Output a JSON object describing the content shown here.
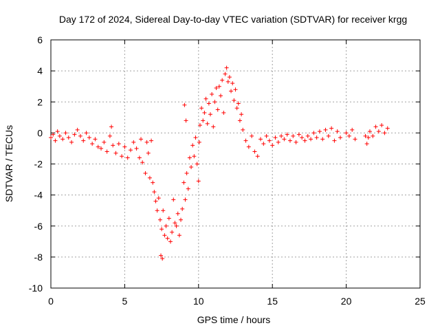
{
  "chart_data": {
    "type": "scatter",
    "title": "Day 172 of 2024, Sidereal Day-to-day VTEC variation (SDTVAR) for receiver krgg",
    "xlabel": "GPS time / hours",
    "ylabel": "SDTVAR / TECUs",
    "xlim": [
      0,
      25
    ],
    "ylim": [
      -10,
      6
    ],
    "xticks": [
      0,
      5,
      10,
      15,
      20,
      25
    ],
    "yticks": [
      -10,
      -8,
      -6,
      -4,
      -2,
      0,
      2,
      4,
      6
    ],
    "xtick_labels": [
      "0",
      "5",
      "10",
      "15",
      "20",
      "25"
    ],
    "ytick_labels": [
      "-10",
      "-8",
      "-6",
      "-4",
      "-2",
      "0",
      "2",
      "4",
      "6"
    ],
    "grid": true,
    "marker": "+",
    "color": "#ff0000",
    "series": [
      {
        "name": "SDTVAR",
        "points": [
          [
            0.0,
            -0.3
          ],
          [
            0.15,
            -0.1
          ],
          [
            0.3,
            -0.5
          ],
          [
            0.45,
            0.1
          ],
          [
            0.6,
            -0.2
          ],
          [
            0.8,
            -0.4
          ],
          [
            1.0,
            0.0
          ],
          [
            1.2,
            -0.3
          ],
          [
            1.4,
            -0.6
          ],
          [
            1.6,
            -0.1
          ],
          [
            1.8,
            0.2
          ],
          [
            2.0,
            -0.2
          ],
          [
            2.2,
            -0.5
          ],
          [
            2.4,
            0.0
          ],
          [
            2.6,
            -0.3
          ],
          [
            2.8,
            -0.7
          ],
          [
            3.0,
            -0.4
          ],
          [
            3.2,
            -0.9
          ],
          [
            3.4,
            -1.0
          ],
          [
            3.6,
            -0.6
          ],
          [
            3.8,
            -1.2
          ],
          [
            4.0,
            -0.2
          ],
          [
            4.1,
            0.4
          ],
          [
            4.2,
            -0.8
          ],
          [
            4.4,
            -1.3
          ],
          [
            4.6,
            -0.7
          ],
          [
            4.8,
            -1.5
          ],
          [
            5.0,
            -0.9
          ],
          [
            5.2,
            -1.6
          ],
          [
            5.4,
            -1.1
          ],
          [
            5.6,
            -0.6
          ],
          [
            5.8,
            -1.0
          ],
          [
            6.0,
            -1.6
          ],
          [
            6.1,
            -0.4
          ],
          [
            6.2,
            -1.9
          ],
          [
            6.4,
            -2.6
          ],
          [
            6.5,
            -0.6
          ],
          [
            6.6,
            -1.3
          ],
          [
            6.7,
            -2.9
          ],
          [
            6.8,
            -0.5
          ],
          [
            6.9,
            -3.2
          ],
          [
            7.0,
            -3.8
          ],
          [
            7.1,
            -4.4
          ],
          [
            7.2,
            -5.0
          ],
          [
            7.3,
            -4.2
          ],
          [
            7.4,
            -5.6
          ],
          [
            7.45,
            -7.9
          ],
          [
            7.5,
            -6.2
          ],
          [
            7.55,
            -8.1
          ],
          [
            7.6,
            -5.0
          ],
          [
            7.7,
            -6.6
          ],
          [
            7.8,
            -6.0
          ],
          [
            7.9,
            -6.8
          ],
          [
            8.0,
            -5.5
          ],
          [
            8.1,
            -7.0
          ],
          [
            8.2,
            -6.4
          ],
          [
            8.3,
            -4.3
          ],
          [
            8.4,
            -5.8
          ],
          [
            8.5,
            -6.0
          ],
          [
            8.6,
            -5.2
          ],
          [
            8.7,
            -6.6
          ],
          [
            8.8,
            -5.6
          ],
          [
            8.9,
            -4.9
          ],
          [
            9.0,
            -3.2
          ],
          [
            9.05,
            1.8
          ],
          [
            9.1,
            -4.3
          ],
          [
            9.15,
            0.8
          ],
          [
            9.2,
            -2.6
          ],
          [
            9.3,
            -3.6
          ],
          [
            9.4,
            -1.6
          ],
          [
            9.5,
            -2.2
          ],
          [
            9.6,
            -0.8
          ],
          [
            9.7,
            -1.5
          ],
          [
            9.8,
            -0.3
          ],
          [
            9.9,
            -2.0
          ],
          [
            10.0,
            -3.1
          ],
          [
            10.05,
            -0.6
          ],
          [
            10.1,
            0.5
          ],
          [
            10.2,
            1.6
          ],
          [
            10.3,
            0.8
          ],
          [
            10.4,
            1.3
          ],
          [
            10.5,
            2.2
          ],
          [
            10.6,
            0.6
          ],
          [
            10.7,
            1.9
          ],
          [
            10.8,
            1.2
          ],
          [
            10.9,
            2.5
          ],
          [
            11.0,
            0.4
          ],
          [
            11.1,
            2.0
          ],
          [
            11.2,
            2.9
          ],
          [
            11.3,
            1.5
          ],
          [
            11.4,
            3.0
          ],
          [
            11.5,
            2.4
          ],
          [
            11.6,
            3.4
          ],
          [
            11.7,
            1.3
          ],
          [
            11.8,
            3.8
          ],
          [
            11.9,
            4.2
          ],
          [
            12.0,
            3.3
          ],
          [
            12.1,
            3.6
          ],
          [
            12.2,
            2.7
          ],
          [
            12.3,
            3.2
          ],
          [
            12.4,
            2.1
          ],
          [
            12.5,
            2.8
          ],
          [
            12.6,
            1.6
          ],
          [
            12.7,
            1.9
          ],
          [
            12.8,
            0.8
          ],
          [
            12.9,
            1.2
          ],
          [
            13.0,
            0.2
          ],
          [
            13.2,
            -0.5
          ],
          [
            13.4,
            -0.9
          ],
          [
            13.6,
            -0.2
          ],
          [
            13.8,
            -1.2
          ],
          [
            14.0,
            -1.5
          ],
          [
            14.2,
            -0.4
          ],
          [
            14.4,
            -0.7
          ],
          [
            14.6,
            -0.2
          ],
          [
            14.8,
            -0.5
          ],
          [
            15.0,
            -0.8
          ],
          [
            15.2,
            -0.3
          ],
          [
            15.4,
            -0.6
          ],
          [
            15.6,
            -0.2
          ],
          [
            15.8,
            -0.4
          ],
          [
            16.0,
            -0.1
          ],
          [
            16.2,
            -0.5
          ],
          [
            16.4,
            -0.2
          ],
          [
            16.6,
            -0.6
          ],
          [
            16.8,
            -0.1
          ],
          [
            17.0,
            -0.3
          ],
          [
            17.2,
            -0.5
          ],
          [
            17.4,
            -0.2
          ],
          [
            17.6,
            -0.4
          ],
          [
            17.8,
            0.0
          ],
          [
            18.0,
            -0.3
          ],
          [
            18.2,
            0.1
          ],
          [
            18.4,
            -0.4
          ],
          [
            18.6,
            0.2
          ],
          [
            18.8,
            -0.2
          ],
          [
            19.0,
            0.3
          ],
          [
            19.2,
            -0.5
          ],
          [
            19.4,
            0.1
          ],
          [
            19.6,
            -0.3
          ],
          [
            20.0,
            0.0
          ],
          [
            20.2,
            -0.2
          ],
          [
            20.4,
            0.2
          ],
          [
            20.6,
            -0.4
          ],
          [
            21.3,
            -0.2
          ],
          [
            21.4,
            -0.7
          ],
          [
            21.5,
            -0.3
          ],
          [
            21.6,
            0.1
          ],
          [
            21.8,
            -0.2
          ],
          [
            22.0,
            0.4
          ],
          [
            22.2,
            0.1
          ],
          [
            22.4,
            0.5
          ],
          [
            22.6,
            0.0
          ],
          [
            22.8,
            0.3
          ]
        ]
      }
    ]
  }
}
